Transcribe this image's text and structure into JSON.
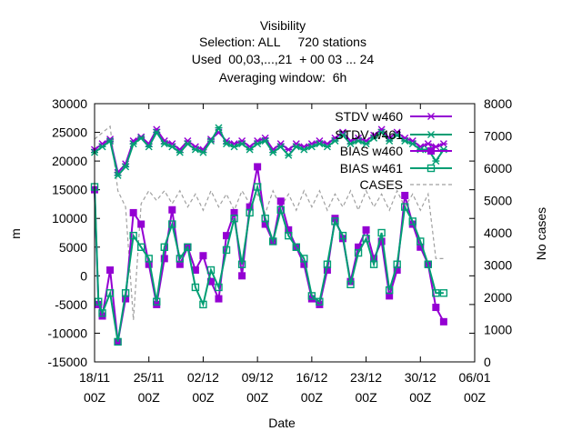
{
  "chart_data": {
    "type": "line",
    "title_lines": [
      "Visibility",
      "Selection: ALL     720 stations",
      "Used  00,03,...,21  + 00 03 ... 24",
      "Averaging window:  6h"
    ],
    "xlabel": "Date",
    "ylabel": "m",
    "y2label": "No cases",
    "x_ticks": [
      {
        "date": "2018-11-18",
        "line1": "18/11",
        "line2": "00Z"
      },
      {
        "date": "2018-11-25",
        "line1": "25/11",
        "line2": "00Z"
      },
      {
        "date": "2018-12-02",
        "line1": "02/12",
        "line2": "00Z"
      },
      {
        "date": "2018-12-09",
        "line1": "09/12",
        "line2": "00Z"
      },
      {
        "date": "2018-12-16",
        "line1": "16/12",
        "line2": "00Z"
      },
      {
        "date": "2018-12-23",
        "line1": "23/12",
        "line2": "00Z"
      },
      {
        "date": "2018-12-30",
        "line1": "30/12",
        "line2": "00Z"
      },
      {
        "date": "2019-01-06",
        "line1": "06/01",
        "line2": "00Z"
      }
    ],
    "xlim": [
      "2018-11-18",
      "2019-01-06"
    ],
    "ylim": [
      -15000,
      30000
    ],
    "y_ticks": [
      -15000,
      -10000,
      -5000,
      0,
      5000,
      10000,
      15000,
      20000,
      25000,
      30000
    ],
    "y2lim": [
      0,
      8000
    ],
    "y2_ticks": [
      0,
      1000,
      2000,
      3000,
      4000,
      5000,
      6000,
      7000,
      8000
    ],
    "legend_position": "top-right",
    "series": [
      {
        "name": "STDV w460",
        "color": "#9400d3",
        "marker": "star",
        "axis": "y",
        "points": [
          [
            "2018-11-18",
            22000
          ],
          [
            "2018-11-19",
            23000
          ],
          [
            "2018-11-20",
            23800
          ],
          [
            "2018-11-21",
            18000
          ],
          [
            "2018-11-22",
            19500
          ],
          [
            "2018-11-23",
            23500
          ],
          [
            "2018-11-24",
            24200
          ],
          [
            "2018-11-25",
            23000
          ],
          [
            "2018-11-26",
            25500
          ],
          [
            "2018-11-27",
            23500
          ],
          [
            "2018-11-28",
            23000
          ],
          [
            "2018-11-29",
            22000
          ],
          [
            "2018-11-30",
            23500
          ],
          [
            "2018-12-01",
            22500
          ],
          [
            "2018-12-02",
            22000
          ],
          [
            "2018-12-03",
            23800
          ],
          [
            "2018-12-04",
            25000
          ],
          [
            "2018-12-05",
            23500
          ],
          [
            "2018-12-06",
            23000
          ],
          [
            "2018-12-07",
            23500
          ],
          [
            "2018-12-08",
            22500
          ],
          [
            "2018-12-09",
            23500
          ],
          [
            "2018-12-10",
            24000
          ],
          [
            "2018-12-11",
            22000
          ],
          [
            "2018-12-12",
            23000
          ],
          [
            "2018-12-13",
            22000
          ],
          [
            "2018-12-14",
            23000
          ],
          [
            "2018-12-15",
            22500
          ],
          [
            "2018-12-16",
            23000
          ],
          [
            "2018-12-17",
            23500
          ],
          [
            "2018-12-18",
            23000
          ],
          [
            "2018-12-19",
            24000
          ],
          [
            "2018-12-20",
            25000
          ],
          [
            "2018-12-21",
            23500
          ],
          [
            "2018-12-22",
            24000
          ],
          [
            "2018-12-23",
            23500
          ],
          [
            "2018-12-24",
            24500
          ],
          [
            "2018-12-25",
            25500
          ],
          [
            "2018-12-26",
            24000
          ],
          [
            "2018-12-27",
            25000
          ],
          [
            "2018-12-28",
            24000
          ],
          [
            "2018-12-29",
            23500
          ],
          [
            "2018-12-30",
            22500
          ],
          [
            "2018-12-31",
            23000
          ],
          [
            "2019-01-01",
            22500
          ],
          [
            "2019-01-02",
            23000
          ]
        ]
      },
      {
        "name": "STDV w461",
        "color": "#009e73",
        "marker": "star",
        "axis": "y",
        "points": [
          [
            "2018-11-18",
            21500
          ],
          [
            "2018-11-19",
            22500
          ],
          [
            "2018-11-20",
            23500
          ],
          [
            "2018-11-21",
            17500
          ],
          [
            "2018-11-22",
            19000
          ],
          [
            "2018-11-23",
            23000
          ],
          [
            "2018-11-24",
            24000
          ],
          [
            "2018-11-25",
            22500
          ],
          [
            "2018-11-26",
            25000
          ],
          [
            "2018-11-27",
            23000
          ],
          [
            "2018-11-28",
            22500
          ],
          [
            "2018-11-29",
            21500
          ],
          [
            "2018-11-30",
            23000
          ],
          [
            "2018-12-01",
            22000
          ],
          [
            "2018-12-02",
            21500
          ],
          [
            "2018-12-03",
            23500
          ],
          [
            "2018-12-04",
            25800
          ],
          [
            "2018-12-05",
            23000
          ],
          [
            "2018-12-06",
            22500
          ],
          [
            "2018-12-07",
            23000
          ],
          [
            "2018-12-08",
            22000
          ],
          [
            "2018-12-09",
            23000
          ],
          [
            "2018-12-10",
            23500
          ],
          [
            "2018-12-11",
            21500
          ],
          [
            "2018-12-12",
            22500
          ],
          [
            "2018-12-13",
            21000
          ],
          [
            "2018-12-14",
            22500
          ],
          [
            "2018-12-15",
            22000
          ],
          [
            "2018-12-16",
            22500
          ],
          [
            "2018-12-17",
            23000
          ],
          [
            "2018-12-18",
            22500
          ],
          [
            "2018-12-19",
            23500
          ],
          [
            "2018-12-20",
            24500
          ],
          [
            "2018-12-21",
            23000
          ],
          [
            "2018-12-22",
            23500
          ],
          [
            "2018-12-23",
            23000
          ],
          [
            "2018-12-24",
            24000
          ],
          [
            "2018-12-25",
            25000
          ],
          [
            "2018-12-26",
            23500
          ],
          [
            "2018-12-27",
            24500
          ],
          [
            "2018-12-28",
            23500
          ],
          [
            "2018-12-29",
            23000
          ],
          [
            "2018-12-30",
            22000
          ],
          [
            "2018-12-31",
            22000
          ],
          [
            "2019-01-01",
            20000
          ],
          [
            "2019-01-02",
            22000
          ]
        ]
      },
      {
        "name": "BIAS w460",
        "color": "#9400d3",
        "marker": "square-filled",
        "axis": "y",
        "points": [
          [
            "2018-11-18",
            15000
          ],
          [
            "2018-11-18.5",
            -5000
          ],
          [
            "2018-11-19",
            -7000
          ],
          [
            "2018-11-20",
            1000
          ],
          [
            "2018-11-21",
            -11500
          ],
          [
            "2018-11-22",
            -4000
          ],
          [
            "2018-11-23",
            11000
          ],
          [
            "2018-11-24",
            9000
          ],
          [
            "2018-11-25",
            2000
          ],
          [
            "2018-11-26",
            -5000
          ],
          [
            "2018-11-27",
            3000
          ],
          [
            "2018-11-28",
            11500
          ],
          [
            "2018-11-29",
            2000
          ],
          [
            "2018-11-30",
            5000
          ],
          [
            "2018-12-01",
            1000
          ],
          [
            "2018-12-02",
            3500
          ],
          [
            "2018-12-03",
            -1000
          ],
          [
            "2018-12-04",
            -4000
          ],
          [
            "2018-12-05",
            7000
          ],
          [
            "2018-12-06",
            11000
          ],
          [
            "2018-12-07",
            0
          ],
          [
            "2018-12-08",
            12000
          ],
          [
            "2018-12-09",
            19000
          ],
          [
            "2018-12-10",
            9000
          ],
          [
            "2018-12-11",
            6000
          ],
          [
            "2018-12-12",
            13000
          ],
          [
            "2018-12-13",
            8000
          ],
          [
            "2018-12-14",
            5000
          ],
          [
            "2018-12-15",
            2000
          ],
          [
            "2018-12-16",
            -4000
          ],
          [
            "2018-12-17",
            -5000
          ],
          [
            "2018-12-18",
            1000
          ],
          [
            "2018-12-19",
            10000
          ],
          [
            "2018-12-20",
            6500
          ],
          [
            "2018-12-21",
            -1000
          ],
          [
            "2018-12-22",
            5000
          ],
          [
            "2018-12-23",
            8000
          ],
          [
            "2018-12-24",
            3000
          ],
          [
            "2018-12-25",
            6000
          ],
          [
            "2018-12-26",
            -3500
          ],
          [
            "2018-12-27",
            1000
          ],
          [
            "2018-12-28",
            14000
          ],
          [
            "2018-12-29",
            9000
          ],
          [
            "2018-12-30",
            5000
          ],
          [
            "2018-12-31",
            2000
          ],
          [
            "2019-01-01",
            -5500
          ],
          [
            "2019-01-02",
            -8000
          ]
        ]
      },
      {
        "name": "BIAS w461",
        "color": "#009e73",
        "marker": "square-open",
        "axis": "y",
        "points": [
          [
            "2018-11-18",
            15500
          ],
          [
            "2018-11-18.5",
            -4500
          ],
          [
            "2018-11-19",
            -6500
          ],
          [
            "2018-11-20",
            -3000
          ],
          [
            "2018-11-21",
            -11500
          ],
          [
            "2018-11-22",
            -3000
          ],
          [
            "2018-11-23",
            7000
          ],
          [
            "2018-11-24",
            5000
          ],
          [
            "2018-11-25",
            3000
          ],
          [
            "2018-11-26",
            -4500
          ],
          [
            "2018-11-27",
            5000
          ],
          [
            "2018-11-28",
            9000
          ],
          [
            "2018-11-29",
            3000
          ],
          [
            "2018-11-30",
            5000
          ],
          [
            "2018-12-01",
            -2000
          ],
          [
            "2018-12-02",
            -5000
          ],
          [
            "2018-12-03",
            1000
          ],
          [
            "2018-12-04",
            -2000
          ],
          [
            "2018-12-05",
            4500
          ],
          [
            "2018-12-06",
            10000
          ],
          [
            "2018-12-07",
            2000
          ],
          [
            "2018-12-08",
            11000
          ],
          [
            "2018-12-09",
            15500
          ],
          [
            "2018-12-10",
            10000
          ],
          [
            "2018-12-11",
            6000
          ],
          [
            "2018-12-12",
            11500
          ],
          [
            "2018-12-13",
            7000
          ],
          [
            "2018-12-14",
            5000
          ],
          [
            "2018-12-15",
            3000
          ],
          [
            "2018-12-16",
            -3500
          ],
          [
            "2018-12-17",
            -4500
          ],
          [
            "2018-12-18",
            2000
          ],
          [
            "2018-12-19",
            9500
          ],
          [
            "2018-12-20",
            7000
          ],
          [
            "2018-12-21",
            -1500
          ],
          [
            "2018-12-22",
            4000
          ],
          [
            "2018-12-23",
            6500
          ],
          [
            "2018-12-24",
            2000
          ],
          [
            "2018-12-25",
            7500
          ],
          [
            "2018-12-26",
            -2500
          ],
          [
            "2018-12-27",
            2000
          ],
          [
            "2018-12-28",
            12000
          ],
          [
            "2018-12-29",
            9500
          ],
          [
            "2018-12-30",
            6000
          ],
          [
            "2018-12-31",
            2000
          ],
          [
            "2019-01-01",
            -3000
          ],
          [
            "2019-01-02",
            -3000
          ]
        ]
      },
      {
        "name": "CASES",
        "color": "#a0a0a0",
        "marker": "none",
        "dash": true,
        "axis": "y2",
        "points": [
          [
            "2018-11-18",
            6900
          ],
          [
            "2018-11-19",
            7100
          ],
          [
            "2018-11-20",
            7300
          ],
          [
            "2018-11-21",
            5300
          ],
          [
            "2018-11-22",
            4800
          ],
          [
            "2018-11-23",
            1300
          ],
          [
            "2018-11-24",
            4900
          ],
          [
            "2018-11-25",
            5300
          ],
          [
            "2018-11-26",
            5000
          ],
          [
            "2018-11-27",
            5300
          ],
          [
            "2018-11-28",
            4900
          ],
          [
            "2018-11-29",
            5300
          ],
          [
            "2018-11-30",
            4800
          ],
          [
            "2018-12-01",
            5200
          ],
          [
            "2018-12-02",
            4700
          ],
          [
            "2018-12-03",
            5300
          ],
          [
            "2018-12-04",
            4800
          ],
          [
            "2018-12-05",
            5200
          ],
          [
            "2018-12-06",
            4700
          ],
          [
            "2018-12-07",
            5300
          ],
          [
            "2018-12-08",
            4900
          ],
          [
            "2018-12-09",
            5200
          ],
          [
            "2018-12-10",
            4600
          ],
          [
            "2018-12-11",
            5300
          ],
          [
            "2018-12-12",
            4800
          ],
          [
            "2018-12-13",
            5200
          ],
          [
            "2018-12-14",
            4700
          ],
          [
            "2018-12-15",
            5300
          ],
          [
            "2018-12-16",
            4800
          ],
          [
            "2018-12-17",
            5300
          ],
          [
            "2018-12-18",
            4700
          ],
          [
            "2018-12-19",
            5200
          ],
          [
            "2018-12-20",
            4800
          ],
          [
            "2018-12-21",
            5300
          ],
          [
            "2018-12-22",
            4700
          ],
          [
            "2018-12-23",
            5300
          ],
          [
            "2018-12-24",
            4800
          ],
          [
            "2018-12-25",
            5200
          ],
          [
            "2018-12-26",
            4700
          ],
          [
            "2018-12-27",
            5300
          ],
          [
            "2018-12-28",
            4800
          ],
          [
            "2018-12-29",
            5200
          ],
          [
            "2018-12-30",
            4700
          ],
          [
            "2018-12-31",
            5200
          ],
          [
            "2019-01-01",
            3200
          ],
          [
            "2019-01-02",
            3200
          ]
        ]
      }
    ]
  }
}
